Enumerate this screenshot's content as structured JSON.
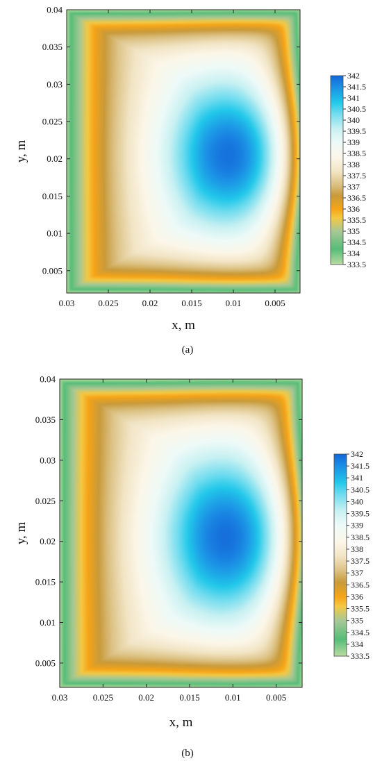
{
  "chart_data": [
    {
      "type": "heatmap",
      "panel_label": "(a)",
      "xlabel": "x, m",
      "ylabel": "y, m",
      "xlim": [
        0.03,
        0.002
      ],
      "ylim": [
        0.002,
        0.04
      ],
      "x_ticks": [
        "0.03",
        "0.025",
        "0.02",
        "0.015",
        "0.01",
        "0.005"
      ],
      "x_tick_values": [
        0.03,
        0.025,
        0.02,
        0.015,
        0.01,
        0.005
      ],
      "y_ticks": [
        "0.005",
        "0.01",
        "0.015",
        "0.02",
        "0.025",
        "0.03",
        "0.035",
        "0.04"
      ],
      "y_tick_values": [
        0.005,
        0.01,
        0.015,
        0.02,
        0.025,
        0.03,
        0.035,
        0.04
      ],
      "colorbar": {
        "min": 333.5,
        "max": 342,
        "labels": [
          "342",
          "341.5",
          "341",
          "340.5",
          "340",
          "339.5",
          "339",
          "338.5",
          "338",
          "337.5",
          "337",
          "336.5",
          "336",
          "335.5",
          "335",
          "334.5",
          "334",
          "333.5"
        ],
        "values": [
          342,
          341.5,
          341,
          340.5,
          340,
          339.5,
          339,
          338.5,
          338,
          337.5,
          337,
          336.5,
          336,
          335.5,
          335,
          334.5,
          334,
          333.5
        ]
      },
      "field": {
        "max_temperature": 342,
        "max_location": {
          "x": 0.0095,
          "y": 0.0205
        },
        "min_temperature": 333.5,
        "min_location": "left edge, bottom-left corner"
      }
    },
    {
      "type": "heatmap",
      "panel_label": "(b)",
      "xlabel": "x, m",
      "ylabel": "y, m",
      "xlim": [
        0.03,
        0.002
      ],
      "ylim": [
        0.002,
        0.04
      ],
      "x_ticks": [
        "0.03",
        "0.025",
        "0.02",
        "0.015",
        "0.01",
        "0.005"
      ],
      "x_tick_values": [
        0.03,
        0.025,
        0.02,
        0.015,
        0.01,
        0.005
      ],
      "y_ticks": [
        "0.005",
        "0.01",
        "0.015",
        "0.02",
        "0.025",
        "0.03",
        "0.035",
        "0.04"
      ],
      "y_tick_values": [
        0.005,
        0.01,
        0.015,
        0.02,
        0.025,
        0.03,
        0.035,
        0.04
      ],
      "colorbar": {
        "min": 333.5,
        "max": 342,
        "labels": [
          "342",
          "341.5",
          "341",
          "340.5",
          "340",
          "339.5",
          "339",
          "338.5",
          "338",
          "337.5",
          "337",
          "336.5",
          "336",
          "335.5",
          "335",
          "334.5",
          "334",
          "333.5"
        ],
        "values": [
          342,
          341.5,
          341,
          340.5,
          340,
          339.5,
          339,
          338.5,
          338,
          337.5,
          337,
          336.5,
          336,
          335.5,
          335,
          334.5,
          334,
          333.5
        ]
      },
      "field": {
        "max_temperature": 342,
        "max_location": {
          "x": 0.0098,
          "y": 0.0205
        },
        "min_temperature": 333.5,
        "min_location": "left edge, bottom-left corner"
      }
    }
  ],
  "colormap": [
    {
      "value": 333.5,
      "color": "#b9dca0"
    },
    {
      "value": 334.2,
      "color": "#55bd78"
    },
    {
      "value": 335.0,
      "color": "#a8c894"
    },
    {
      "value": 335.6,
      "color": "#f5c842"
    },
    {
      "value": 336.0,
      "color": "#f6a417"
    },
    {
      "value": 336.6,
      "color": "#c89a3a"
    },
    {
      "value": 337.1,
      "color": "#dcc183"
    },
    {
      "value": 337.7,
      "color": "#f2e5c5"
    },
    {
      "value": 338.3,
      "color": "#fcf6e8"
    },
    {
      "value": 339.0,
      "color": "#edfaf8"
    },
    {
      "value": 339.6,
      "color": "#c9f1f2"
    },
    {
      "value": 340.3,
      "color": "#70dcef"
    },
    {
      "value": 340.8,
      "color": "#22c8ea"
    },
    {
      "value": 341.5,
      "color": "#1b8fe5"
    },
    {
      "value": 342.0,
      "color": "#1466d9"
    }
  ]
}
